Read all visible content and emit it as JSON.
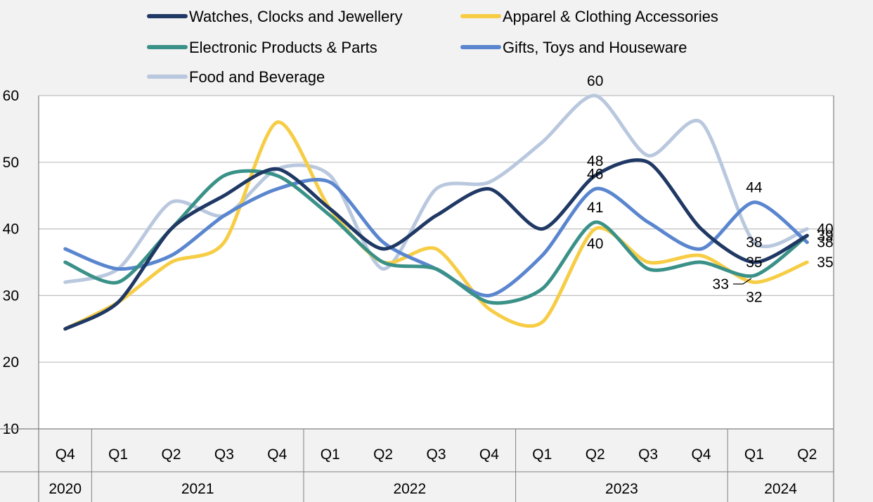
{
  "chart_data": {
    "type": "line",
    "title": "",
    "xlabel": "",
    "ylabel": "",
    "ylim": [
      10,
      60
    ],
    "yticks": [
      10,
      20,
      30,
      40,
      50,
      60
    ],
    "grid": true,
    "legend_position": "top",
    "categories": [
      "Q4",
      "Q1",
      "Q2",
      "Q3",
      "Q4",
      "Q1",
      "Q2",
      "Q3",
      "Q4",
      "Q1",
      "Q2",
      "Q3",
      "Q4",
      "Q1",
      "Q2"
    ],
    "years": [
      {
        "label": "2020",
        "start": 0,
        "end": 0
      },
      {
        "label": "2021",
        "start": 1,
        "end": 4
      },
      {
        "label": "2022",
        "start": 5,
        "end": 8
      },
      {
        "label": "2023",
        "start": 9,
        "end": 12
      },
      {
        "label": "2024",
        "start": 13,
        "end": 14
      }
    ],
    "series": [
      {
        "name": "Watches, Clocks and Jewellery",
        "color": "#1f3864",
        "values": [
          25,
          29,
          40,
          45,
          49,
          43,
          37,
          42,
          46,
          40,
          48,
          50,
          40,
          35,
          39
        ]
      },
      {
        "name": "Apparel & Clothing Accessories",
        "color": "#f6cd45",
        "values": [
          25,
          29,
          35,
          38,
          56,
          43,
          35,
          37,
          28,
          26,
          40,
          35,
          36,
          32,
          35
        ]
      },
      {
        "name": "Electronic Products & Parts",
        "color": "#3a9188",
        "values": [
          35,
          32,
          40,
          48,
          48,
          42,
          35,
          34,
          29,
          31,
          41,
          34,
          35,
          33,
          39
        ]
      },
      {
        "name": "Gifts, Toys and Houseware",
        "color": "#5a86cf",
        "values": [
          37,
          34,
          36,
          42,
          46,
          47,
          38,
          34,
          30,
          36,
          46,
          41,
          37,
          44,
          38
        ]
      },
      {
        "name": "Food and Beverage",
        "color": "#b9c8de",
        "values": [
          32,
          34,
          44,
          42,
          49,
          48,
          34,
          46,
          47,
          53,
          60,
          51,
          56,
          38,
          40
        ]
      }
    ],
    "data_labels": [
      {
        "series": 4,
        "index": 10,
        "text": "60",
        "pos": "above"
      },
      {
        "series": 0,
        "index": 10,
        "text": "48",
        "pos": "above"
      },
      {
        "series": 3,
        "index": 10,
        "text": "46",
        "pos": "above"
      },
      {
        "series": 2,
        "index": 10,
        "text": "41",
        "pos": "above"
      },
      {
        "series": 1,
        "index": 10,
        "text": "40",
        "pos": "below"
      },
      {
        "series": 3,
        "index": 13,
        "text": "44",
        "pos": "above"
      },
      {
        "series": 4,
        "index": 13,
        "text": "38",
        "pos": "onpoint"
      },
      {
        "series": 0,
        "index": 13,
        "text": "35",
        "pos": "onpoint"
      },
      {
        "series": 2,
        "index": 13,
        "text": "33",
        "pos": "leader-left"
      },
      {
        "series": 1,
        "index": 13,
        "text": "32",
        "pos": "below"
      },
      {
        "series": 4,
        "index": 14,
        "text": "40",
        "pos": "right"
      },
      {
        "series": 0,
        "index": 14,
        "text": "39",
        "pos": "right"
      },
      {
        "series": 3,
        "index": 14,
        "text": "38",
        "pos": "right"
      },
      {
        "series": 1,
        "index": 14,
        "text": "35",
        "pos": "right"
      }
    ]
  }
}
